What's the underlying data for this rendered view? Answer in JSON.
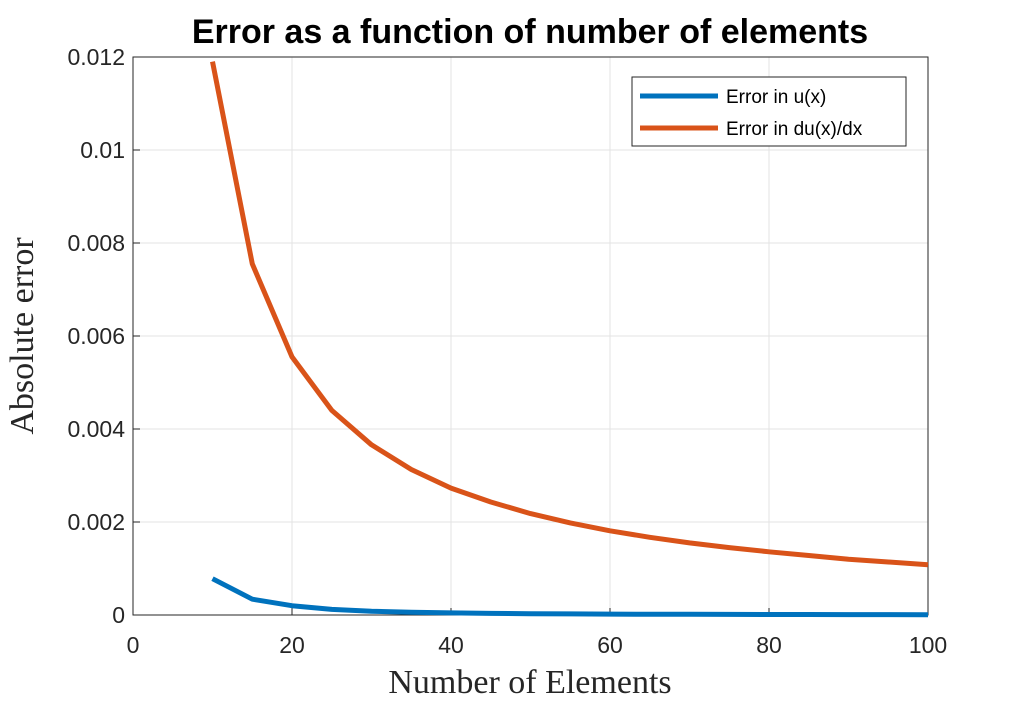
{
  "chart_data": {
    "type": "line",
    "title": "Error as a function of number of elements",
    "xlabel": "Number of Elements",
    "ylabel": "Absolute error",
    "xlim": [
      0,
      100
    ],
    "ylim": [
      0,
      0.012
    ],
    "xticks": [
      0,
      20,
      40,
      60,
      80,
      100
    ],
    "xtick_labels": [
      "0",
      "20",
      "40",
      "60",
      "80",
      "100"
    ],
    "yticks": [
      0,
      0.002,
      0.004,
      0.006,
      0.008,
      0.01,
      0.012
    ],
    "ytick_labels": [
      "0",
      "0.002",
      "0.004",
      "0.006",
      "0.008",
      "0.01",
      "0.012"
    ],
    "grid": true,
    "legend_position": "top-right",
    "series": [
      {
        "name": "Error in u(x)",
        "color": "#0072BD",
        "x": [
          10,
          15,
          20,
          25,
          30,
          35,
          40,
          45,
          50,
          55,
          60,
          65,
          70,
          75,
          80,
          85,
          90,
          95,
          100
        ],
        "y": [
          0.00078,
          0.00034,
          0.0002,
          0.00012,
          8e-05,
          6e-05,
          4.5e-05,
          3.5e-05,
          2.8e-05,
          2.3e-05,
          1.9e-05,
          1.6e-05,
          1.4e-05,
          1.2e-05,
          1.1e-05,
          1e-05,
          9e-06,
          8e-06,
          7e-06
        ]
      },
      {
        "name": "Error in du(x)/dx",
        "color": "#D95319",
        "x": [
          10,
          15,
          20,
          25,
          30,
          35,
          40,
          45,
          50,
          55,
          60,
          65,
          70,
          75,
          80,
          85,
          90,
          95,
          100
        ],
        "y": [
          0.0119,
          0.00755,
          0.00555,
          0.0044,
          0.00366,
          0.00313,
          0.00273,
          0.00243,
          0.00218,
          0.00198,
          0.00181,
          0.00167,
          0.00155,
          0.00145,
          0.00136,
          0.00128,
          0.0012,
          0.00114,
          0.00108
        ]
      }
    ]
  }
}
